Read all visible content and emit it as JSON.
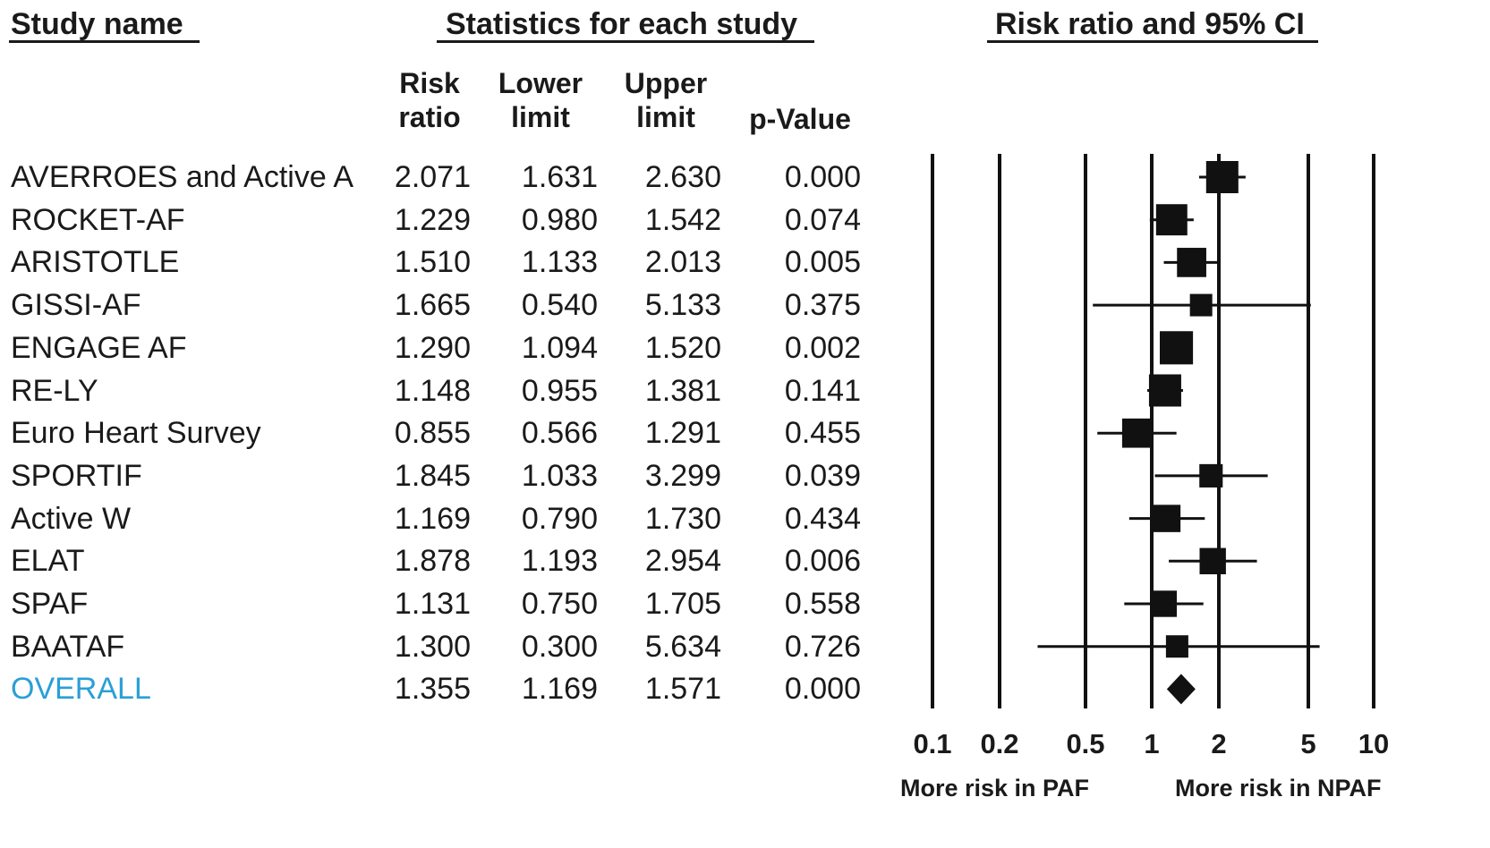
{
  "headers": {
    "study_name": "Study name",
    "statistics": "Statistics for each study",
    "forest": "Risk ratio and 95% CI"
  },
  "columns": {
    "rr_line1": "Risk",
    "rr_line2": "ratio",
    "lower_line1": "Lower",
    "lower_line2": "limit",
    "upper_line1": "Upper",
    "upper_line2": "limit",
    "p": "p-Value"
  },
  "colors": {
    "text": "#1a1a1a",
    "overall": "#2a9fd6"
  },
  "chart_data": {
    "type": "forest",
    "x_scale": "log",
    "xlim": [
      0.1,
      10
    ],
    "ticks": [
      0.1,
      0.2,
      0.5,
      1,
      2,
      5,
      10
    ],
    "tick_labels": [
      "0.1",
      "0.2",
      "0.5",
      "1",
      "2",
      "5",
      "10"
    ],
    "xlabel_left": "More risk in PAF",
    "xlabel_right": "More risk in NPAF",
    "grid": true,
    "studies": [
      {
        "name": "AVERROES and Active A",
        "rr": "2.071",
        "lower": "1.631",
        "upper": "2.630",
        "p": "0.000",
        "weight": 1.0
      },
      {
        "name": "ROCKET-AF",
        "rr": "1.229",
        "lower": "0.980",
        "upper": "1.542",
        "p": "0.074",
        "weight": 0.95
      },
      {
        "name": "ARISTOTLE",
        "rr": "1.510",
        "lower": "1.133",
        "upper": "2.013",
        "p": "0.005",
        "weight": 0.85
      },
      {
        "name": "GISSI-AF",
        "rr": "1.665",
        "lower": "0.540",
        "upper": "5.133",
        "p": "0.375",
        "weight": 0.5
      },
      {
        "name": "ENGAGE AF",
        "rr": "1.290",
        "lower": "1.094",
        "upper": "1.520",
        "p": "0.002",
        "weight": 1.05
      },
      {
        "name": "RE-LY",
        "rr": "1.148",
        "lower": "0.955",
        "upper": "1.381",
        "p": "0.141",
        "weight": 1.0
      },
      {
        "name": "Euro Heart Survey",
        "rr": "0.855",
        "lower": "0.566",
        "upper": "1.291",
        "p": "0.455",
        "weight": 0.85
      },
      {
        "name": "SPORTIF",
        "rr": "1.845",
        "lower": "1.033",
        "upper": "3.299",
        "p": "0.039",
        "weight": 0.55
      },
      {
        "name": "Active W",
        "rr": "1.169",
        "lower": "0.790",
        "upper": "1.730",
        "p": "0.434",
        "weight": 0.75
      },
      {
        "name": "ELAT",
        "rr": "1.878",
        "lower": "1.193",
        "upper": "2.954",
        "p": "0.006",
        "weight": 0.7
      },
      {
        "name": "SPAF",
        "rr": "1.131",
        "lower": "0.750",
        "upper": "1.705",
        "p": "0.558",
        "weight": 0.7
      },
      {
        "name": "BAATAF",
        "rr": "1.300",
        "lower": "0.300",
        "upper": "5.634",
        "p": "0.726",
        "weight": 0.5
      }
    ],
    "overall": {
      "name": "OVERALL",
      "rr": "1.355",
      "lower": "1.169",
      "upper": "1.571",
      "p": "0.000"
    }
  }
}
